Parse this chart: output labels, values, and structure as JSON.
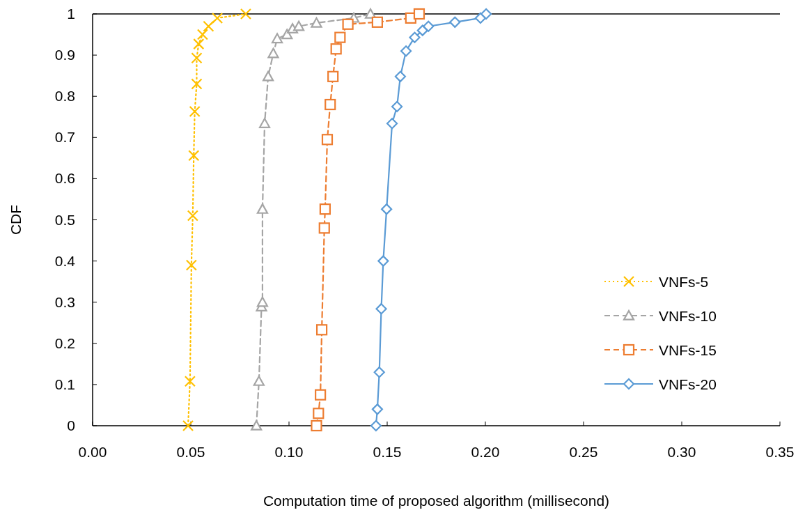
{
  "chart_data": {
    "type": "line",
    "xlabel": "Computation time of proposed algorithm (millisecond)",
    "ylabel": "CDF",
    "xlim": [
      0,
      0.35
    ],
    "xticks": [
      {
        "value": 0,
        "label": "0.00"
      },
      {
        "value": 0.05,
        "label": "0.05"
      },
      {
        "value": 0.1,
        "label": "0.10"
      },
      {
        "value": 0.15,
        "label": "0.15"
      },
      {
        "value": 0.2,
        "label": "0.20"
      },
      {
        "value": 0.25,
        "label": "0.25"
      },
      {
        "value": 0.3,
        "label": "0.30"
      },
      {
        "value": 0.35,
        "label": "0.35"
      }
    ],
    "ylim": [
      0,
      1
    ],
    "yticks": [
      0,
      0.1,
      0.2,
      0.3,
      0.4,
      0.5,
      0.6,
      0.7,
      0.8,
      0.9,
      1
    ],
    "legend": "right",
    "grid": false,
    "series": [
      {
        "name": "VNFs-5",
        "color": "#ffc000",
        "marker": "cross",
        "line_style": "dotted",
        "x": [
          0.0486,
          0.0496,
          0.0503,
          0.051,
          0.0515,
          0.052,
          0.053,
          0.053,
          0.054,
          0.056,
          0.059,
          0.0635,
          0.078
        ],
        "values": [
          0,
          0.108,
          0.39,
          0.51,
          0.656,
          0.763,
          0.83,
          0.893,
          0.927,
          0.95,
          0.97,
          0.99,
          1
        ]
      },
      {
        "name": "VNFs-10",
        "color": "#a5a5a5",
        "marker": "triangle",
        "line_style": "dashed",
        "x": [
          0.0834,
          0.0847,
          0.086,
          0.0865,
          0.0865,
          0.0876,
          0.0894,
          0.092,
          0.094,
          0.099,
          0.1018,
          0.105,
          0.114,
          0.133,
          0.1415
        ],
        "values": [
          0,
          0.108,
          0.289,
          0.3,
          0.526,
          0.734,
          0.848,
          0.904,
          0.94,
          0.95,
          0.964,
          0.97,
          0.978,
          0.99,
          1
        ]
      },
      {
        "name": "VNFs-15",
        "color": "#ed7d31",
        "marker": "square",
        "line_style": "dashed",
        "x": [
          0.114,
          0.115,
          0.116,
          0.1167,
          0.118,
          0.1184,
          0.1195,
          0.121,
          0.1224,
          0.124,
          0.126,
          0.13,
          0.145,
          0.162,
          0.1663
        ],
        "values": [
          0,
          0.03,
          0.075,
          0.233,
          0.48,
          0.526,
          0.695,
          0.78,
          0.848,
          0.915,
          0.943,
          0.975,
          0.98,
          0.99,
          1
        ]
      },
      {
        "name": "VNFs-20",
        "color": "#5b9bd5",
        "marker": "diamond",
        "line_style": "solid",
        "x": [
          0.1443,
          0.145,
          0.146,
          0.147,
          0.148,
          0.1497,
          0.1525,
          0.155,
          0.1567,
          0.1596,
          0.164,
          0.168,
          0.171,
          0.1845,
          0.1975,
          0.2004
        ],
        "values": [
          0,
          0.04,
          0.13,
          0.284,
          0.4,
          0.526,
          0.734,
          0.775,
          0.848,
          0.91,
          0.943,
          0.96,
          0.97,
          0.98,
          0.99,
          1
        ]
      }
    ]
  }
}
